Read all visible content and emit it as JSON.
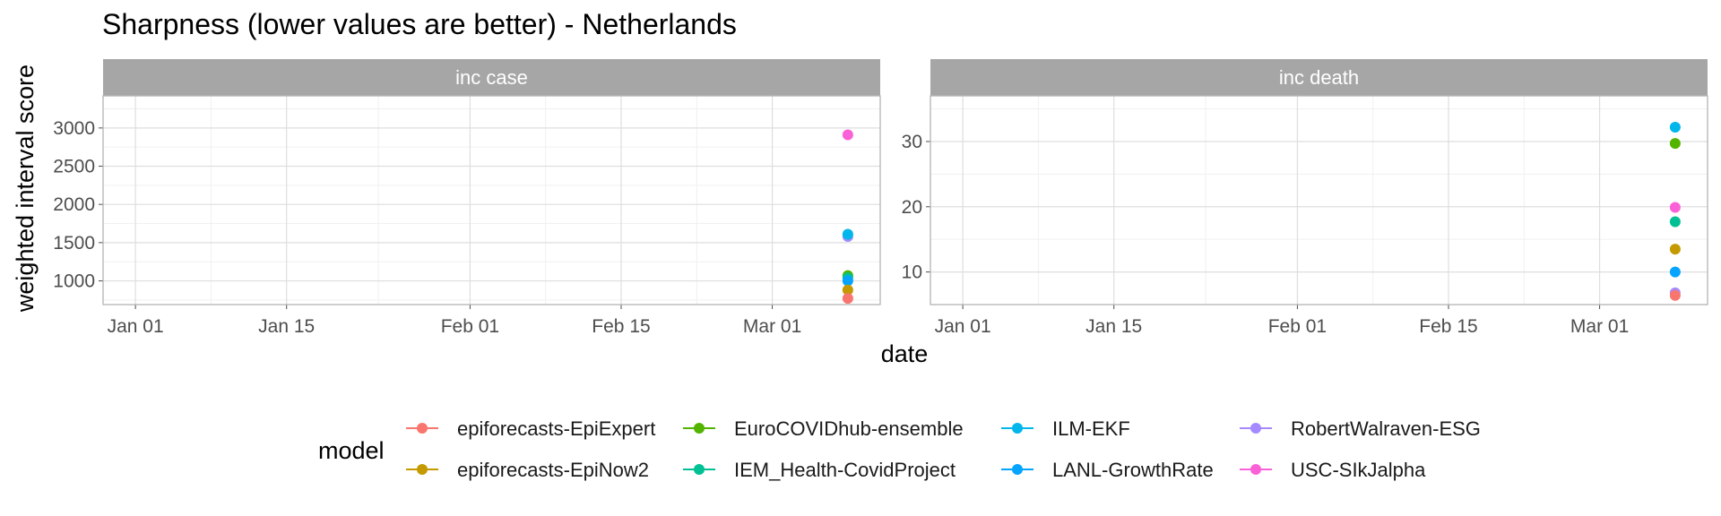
{
  "chart_data": {
    "type": "scatter",
    "title": "Sharpness (lower values are better) - Netherlands",
    "xlabel": "date",
    "ylabel": "weighted interval score",
    "x_ticks": [
      "Jan 01",
      "Jan 15",
      "Feb 01",
      "Feb 15",
      "Mar 01"
    ],
    "xlim": [
      "2020-12-29",
      "2021-03-11"
    ],
    "grid": true,
    "legend": {
      "title": "model",
      "position": "bottom",
      "ncol": 4
    },
    "series_colors": {
      "epiforecasts-EpiExpert": "#F8766D",
      "epiforecasts-EpiNow2": "#C49A00",
      "EuroCOVIDhub-ensemble": "#53B400",
      "IEM_Health-CovidProject": "#00C094",
      "ILM-EKF": "#00B6EB",
      "LANL-GrowthRate": "#06A4FF",
      "RobertWalraven-ESG": "#A58AFF",
      "USC-SIkJalpha": "#FB61D7"
    },
    "series_order": [
      "epiforecasts-EpiExpert",
      "epiforecasts-EpiNow2",
      "EuroCOVIDhub-ensemble",
      "IEM_Health-CovidProject",
      "ILM-EKF",
      "LANL-GrowthRate",
      "RobertWalraven-ESG",
      "USC-SIkJalpha"
    ],
    "panels": [
      {
        "strip": "inc case",
        "ylim": [
          690,
          3420
        ],
        "y_ticks": [
          1000,
          1500,
          2000,
          2500,
          3000
        ],
        "points": [
          {
            "model": "RobertWalraven-ESG",
            "date": "2021-03-08",
            "value": 1580
          },
          {
            "model": "ILM-EKF",
            "date": "2021-03-08",
            "value": 1610
          },
          {
            "model": "EuroCOVIDhub-ensemble",
            "date": "2021-03-08",
            "value": 1070
          },
          {
            "model": "IEM_Health-CovidProject",
            "date": "2021-03-08",
            "value": 1040
          },
          {
            "model": "LANL-GrowthRate",
            "date": "2021-03-08",
            "value": 1000
          },
          {
            "model": "epiforecasts-EpiNow2",
            "date": "2021-03-08",
            "value": 880
          },
          {
            "model": "epiforecasts-EpiExpert",
            "date": "2021-03-08",
            "value": 770
          },
          {
            "model": "USC-SIkJalpha",
            "date": "2021-03-08",
            "value": 2910
          }
        ]
      },
      {
        "strip": "inc death",
        "ylim": [
          5,
          37
        ],
        "y_ticks": [
          10,
          20,
          30
        ],
        "points": [
          {
            "model": "ILM-EKF",
            "date": "2021-03-08",
            "value": 32.2
          },
          {
            "model": "EuroCOVIDhub-ensemble",
            "date": "2021-03-08",
            "value": 29.7
          },
          {
            "model": "USC-SIkJalpha",
            "date": "2021-03-08",
            "value": 19.9
          },
          {
            "model": "IEM_Health-CovidProject",
            "date": "2021-03-08",
            "value": 17.7
          },
          {
            "model": "epiforecasts-EpiNow2",
            "date": "2021-03-08",
            "value": 13.5
          },
          {
            "model": "LANL-GrowthRate",
            "date": "2021-03-08",
            "value": 10.0
          },
          {
            "model": "RobertWalraven-ESG",
            "date": "2021-03-08",
            "value": 6.8
          },
          {
            "model": "epiforecasts-EpiExpert",
            "date": "2021-03-08",
            "value": 6.4
          }
        ]
      }
    ]
  }
}
